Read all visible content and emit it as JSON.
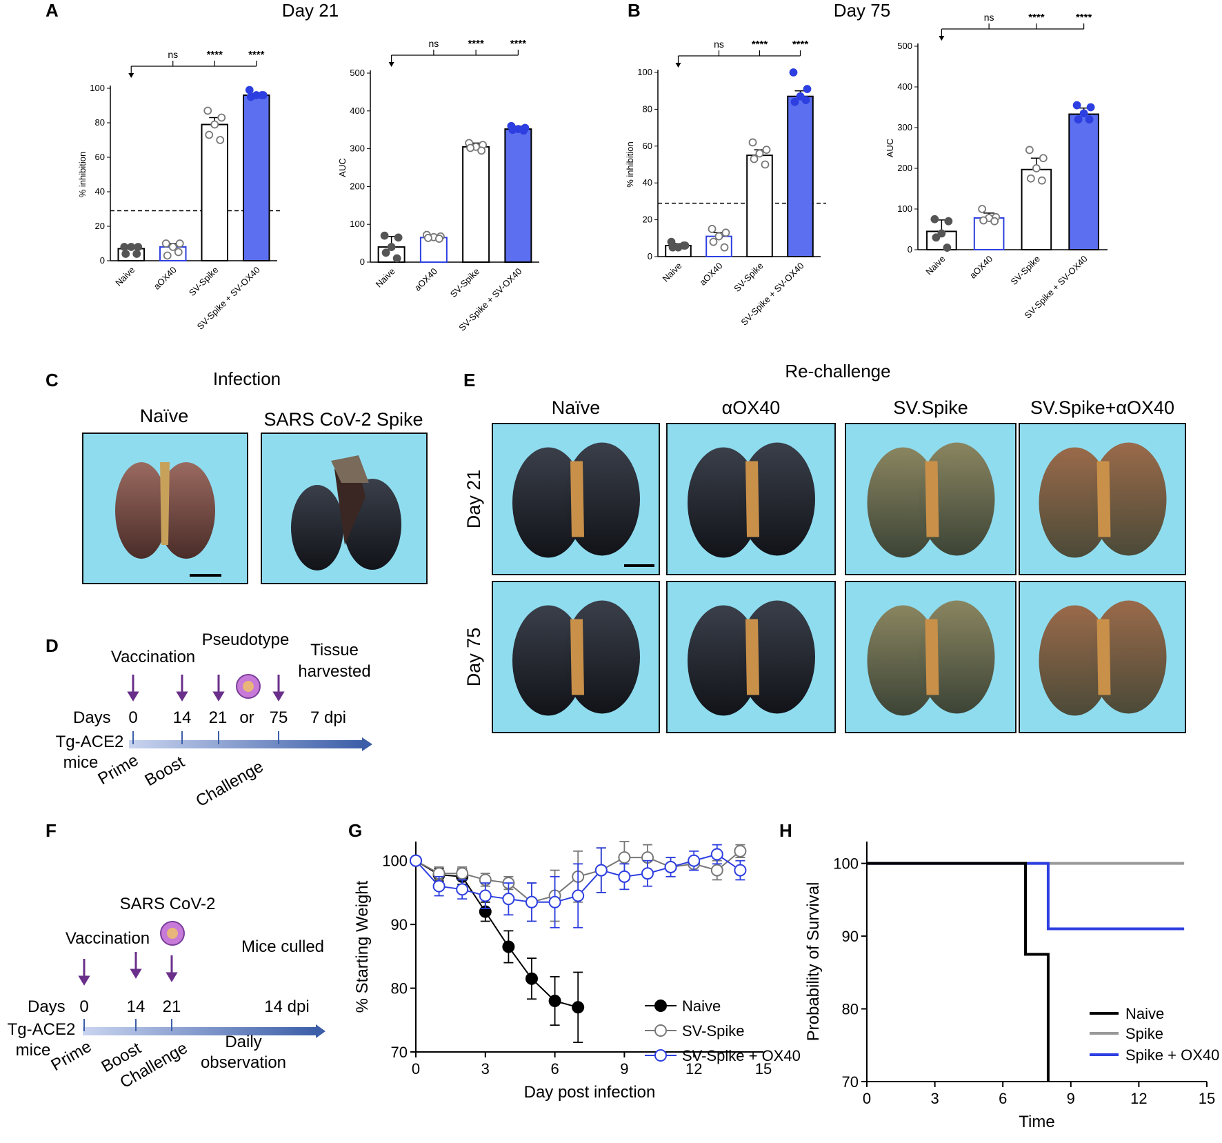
{
  "panels": {
    "A": {
      "label": "A",
      "title": "Day 21"
    },
    "B": {
      "label": "B",
      "title": "Day 75"
    },
    "C": {
      "label": "C",
      "title": "Infection",
      "images": [
        "Naïve",
        "SARS CoV-2 Spike"
      ]
    },
    "D": {
      "label": "D",
      "timeline": {
        "top_labels": [
          "Vaccination",
          "Pseudotype",
          "Tissue harvested"
        ],
        "tissue_line1": "Tissue",
        "tissue_line2": "harvested",
        "days_label": "Days",
        "days": [
          "0",
          "14",
          "21",
          "or",
          "75",
          "7 dpi"
        ],
        "mice_line1": "Tg-ACE2",
        "mice_line2": "mice",
        "phases": [
          "Prime",
          "Boost",
          "Challenge"
        ]
      }
    },
    "E": {
      "label": "E",
      "title": "Re-challenge",
      "columns": [
        "Naïve",
        "αOX40",
        "SV.Spike",
        "SV.Spike+αOX40"
      ],
      "rows": [
        "Day 21",
        "Day 75"
      ]
    },
    "F": {
      "label": "F",
      "timeline": {
        "virus_label": "SARS CoV-2",
        "vacc_label": "Vaccination",
        "culled_label": "Mice culled",
        "days_label": "Days",
        "days": [
          "0",
          "14",
          "21",
          "14 dpi"
        ],
        "mice_line1": "Tg-ACE2",
        "mice_line2": "mice",
        "phases": [
          "Prime",
          "Boost",
          "Challenge"
        ],
        "obs_line1": "Daily",
        "obs_line2": "observation"
      }
    },
    "G": {
      "label": "G"
    },
    "H": {
      "label": "H"
    }
  },
  "colors": {
    "naive": "#555555",
    "aox40": "#2d3fe0",
    "spike_fill": "#ffffff",
    "combo": "#5b6ff0",
    "naive_line": "#000000",
    "spike_line": "#777777",
    "combo_line": "#2d3fe0"
  },
  "chart_data": [
    {
      "id": "A1",
      "type": "bar",
      "title": "Day 21",
      "ylabel": "% inhibition",
      "ylim": [
        0,
        100
      ],
      "yticks": [
        0,
        20,
        40,
        60,
        80,
        100
      ],
      "threshold": 29,
      "categories": [
        "Naive",
        "aOX40",
        "SV-Spike",
        "SV-Spike + SV-OX40"
      ],
      "values": [
        7,
        8,
        79,
        96
      ],
      "sem": [
        1.5,
        2,
        4,
        1
      ],
      "points": [
        [
          8,
          8,
          8,
          4,
          4
        ],
        [
          10,
          10,
          8,
          3,
          5
        ],
        [
          87,
          83,
          79,
          73,
          70
        ],
        [
          99,
          96,
          96,
          95,
          96
        ]
      ],
      "significance": [
        "",
        "ns",
        "****",
        "****"
      ]
    },
    {
      "id": "A2",
      "type": "bar",
      "title": "Day 21",
      "ylabel": "AUC",
      "ylim": [
        0,
        500
      ],
      "yticks": [
        0,
        100,
        200,
        300,
        400,
        500
      ],
      "categories": [
        "Naive",
        "aOX40",
        "SV-Spike",
        "SV-Spike + SV-OX40"
      ],
      "values": [
        40,
        65,
        305,
        352
      ],
      "sem": [
        28,
        5,
        10,
        8
      ],
      "points": [
        [
          70,
          65,
          40,
          25,
          10
        ],
        [
          72,
          68,
          66,
          64,
          62
        ],
        [
          315,
          310,
          305,
          302,
          295
        ],
        [
          360,
          355,
          352,
          350,
          348
        ]
      ],
      "significance": [
        "",
        "ns",
        "****",
        "****"
      ]
    },
    {
      "id": "B1",
      "type": "bar",
      "title": "Day 75",
      "ylabel": "% inhibition",
      "ylim": [
        0,
        100
      ],
      "yticks": [
        0,
        20,
        40,
        60,
        80,
        100
      ],
      "threshold": 29,
      "categories": [
        "Naive",
        "aOX40",
        "SV-Spike",
        "SV-Spike + SV-OX40"
      ],
      "values": [
        6,
        11,
        55,
        87
      ],
      "sem": [
        1,
        2,
        3,
        3
      ],
      "points": [
        [
          8,
          6,
          5,
          5,
          6
        ],
        [
          15,
          13,
          11,
          8,
          5
        ],
        [
          62,
          58,
          56,
          53,
          50
        ],
        [
          100,
          91,
          87,
          84,
          85
        ]
      ],
      "significance": [
        "",
        "ns",
        "****",
        "****"
      ]
    },
    {
      "id": "B2",
      "type": "bar",
      "title": "Day 75",
      "ylabel": "AUC",
      "ylim": [
        0,
        500
      ],
      "yticks": [
        0,
        100,
        200,
        300,
        400,
        500
      ],
      "categories": [
        "Naive",
        "aOX40",
        "SV-Spike",
        "SV-Spike + SV-OX40"
      ],
      "values": [
        45,
        78,
        197,
        333
      ],
      "sem": [
        28,
        12,
        28,
        15
      ],
      "points": [
        [
          75,
          70,
          40,
          30,
          5
        ],
        [
          100,
          80,
          78,
          72,
          70
        ],
        [
          245,
          225,
          200,
          175,
          170
        ],
        [
          355,
          350,
          335,
          320,
          320
        ]
      ],
      "significance": [
        "",
        "ns",
        "****",
        "****"
      ]
    },
    {
      "id": "G",
      "type": "line",
      "xlabel": "Day post infection",
      "ylabel": "% Starting Weight",
      "xlim": [
        0,
        15
      ],
      "ylim": [
        70,
        103
      ],
      "xticks": [
        0,
        3,
        6,
        9,
        12,
        15
      ],
      "yticks": [
        70,
        80,
        90,
        100
      ],
      "series": [
        {
          "name": "Naive",
          "style": "filled",
          "x": [
            0,
            1,
            2,
            3,
            4,
            5,
            6,
            7
          ],
          "y": [
            100,
            97.8,
            97.5,
            92,
            86.5,
            81.5,
            78,
            77
          ],
          "err": [
            0.5,
            1,
            1.2,
            1.5,
            2.5,
            3.2,
            3.8,
            5.5
          ]
        },
        {
          "name": "SV-Spike",
          "style": "open-gray",
          "x": [
            0,
            1,
            2,
            3,
            4,
            5,
            6,
            7,
            8,
            9,
            10,
            11,
            12,
            13,
            14
          ],
          "y": [
            100,
            98,
            98,
            97,
            96.5,
            93.5,
            94.5,
            97.5,
            98.5,
            100.5,
            100.5,
            99,
            99.5,
            98.5,
            101.5
          ],
          "err": [
            0.5,
            1,
            1,
            1,
            1,
            3,
            4,
            4,
            3.5,
            2.5,
            2,
            1.5,
            1,
            1.5,
            1
          ]
        },
        {
          "name": "SV-Spike + OX40",
          "style": "open-blue",
          "x": [
            0,
            1,
            2,
            3,
            4,
            5,
            6,
            7,
            8,
            9,
            10,
            11,
            12,
            13,
            14
          ],
          "y": [
            100,
            96,
            95.5,
            94.5,
            94,
            93.5,
            93.5,
            94.5,
            98.5,
            97.5,
            98,
            99,
            100,
            101,
            98.5
          ],
          "err": [
            0.5,
            1.5,
            1.5,
            2,
            2.5,
            3,
            4,
            5,
            3.5,
            2,
            2,
            1.5,
            1.5,
            1.5,
            1.5
          ]
        }
      ]
    },
    {
      "id": "H",
      "type": "line",
      "subtype": "step",
      "xlabel": "Time",
      "ylabel": "Probability of Survival",
      "xlim": [
        0,
        15
      ],
      "ylim": [
        70,
        103
      ],
      "xticks": [
        0,
        3,
        6,
        9,
        12,
        15
      ],
      "yticks": [
        70,
        80,
        90,
        100
      ],
      "series": [
        {
          "name": "Naive",
          "steps": [
            [
              0,
              100
            ],
            [
              7,
              100
            ],
            [
              7,
              87.5
            ],
            [
              8,
              87.5
            ],
            [
              8,
              70
            ]
          ]
        },
        {
          "name": "Spike",
          "steps": [
            [
              0,
              100
            ],
            [
              14,
              100
            ]
          ]
        },
        {
          "name": "Spike + OX40",
          "steps": [
            [
              0,
              100
            ],
            [
              8,
              100
            ],
            [
              8,
              91
            ],
            [
              14,
              91
            ]
          ]
        }
      ]
    }
  ]
}
